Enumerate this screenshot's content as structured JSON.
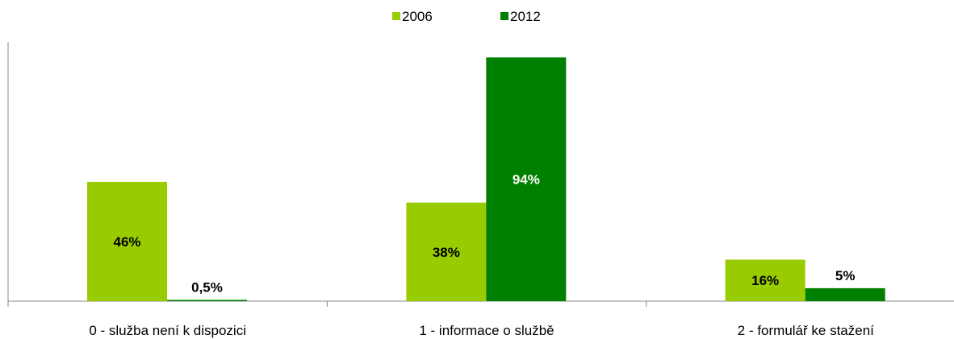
{
  "chart_data": {
    "type": "bar",
    "categories": [
      "0 - služba není k dispozici",
      "1 - informace o službě",
      "2 - formulář ke stažení"
    ],
    "series": [
      {
        "name": "2006",
        "color": "#99cc00",
        "values": [
          46,
          38,
          16
        ],
        "labels": [
          "46%",
          "38%",
          "16%"
        ],
        "label_color": "#000000"
      },
      {
        "name": "2012",
        "color": "#008000",
        "values": [
          0.5,
          94,
          5
        ],
        "labels": [
          "0,5%",
          "94%",
          "5%"
        ],
        "label_color": "#ffffff"
      }
    ],
    "ylim": [
      0,
      100
    ],
    "grid": false,
    "legend_position": "top"
  }
}
